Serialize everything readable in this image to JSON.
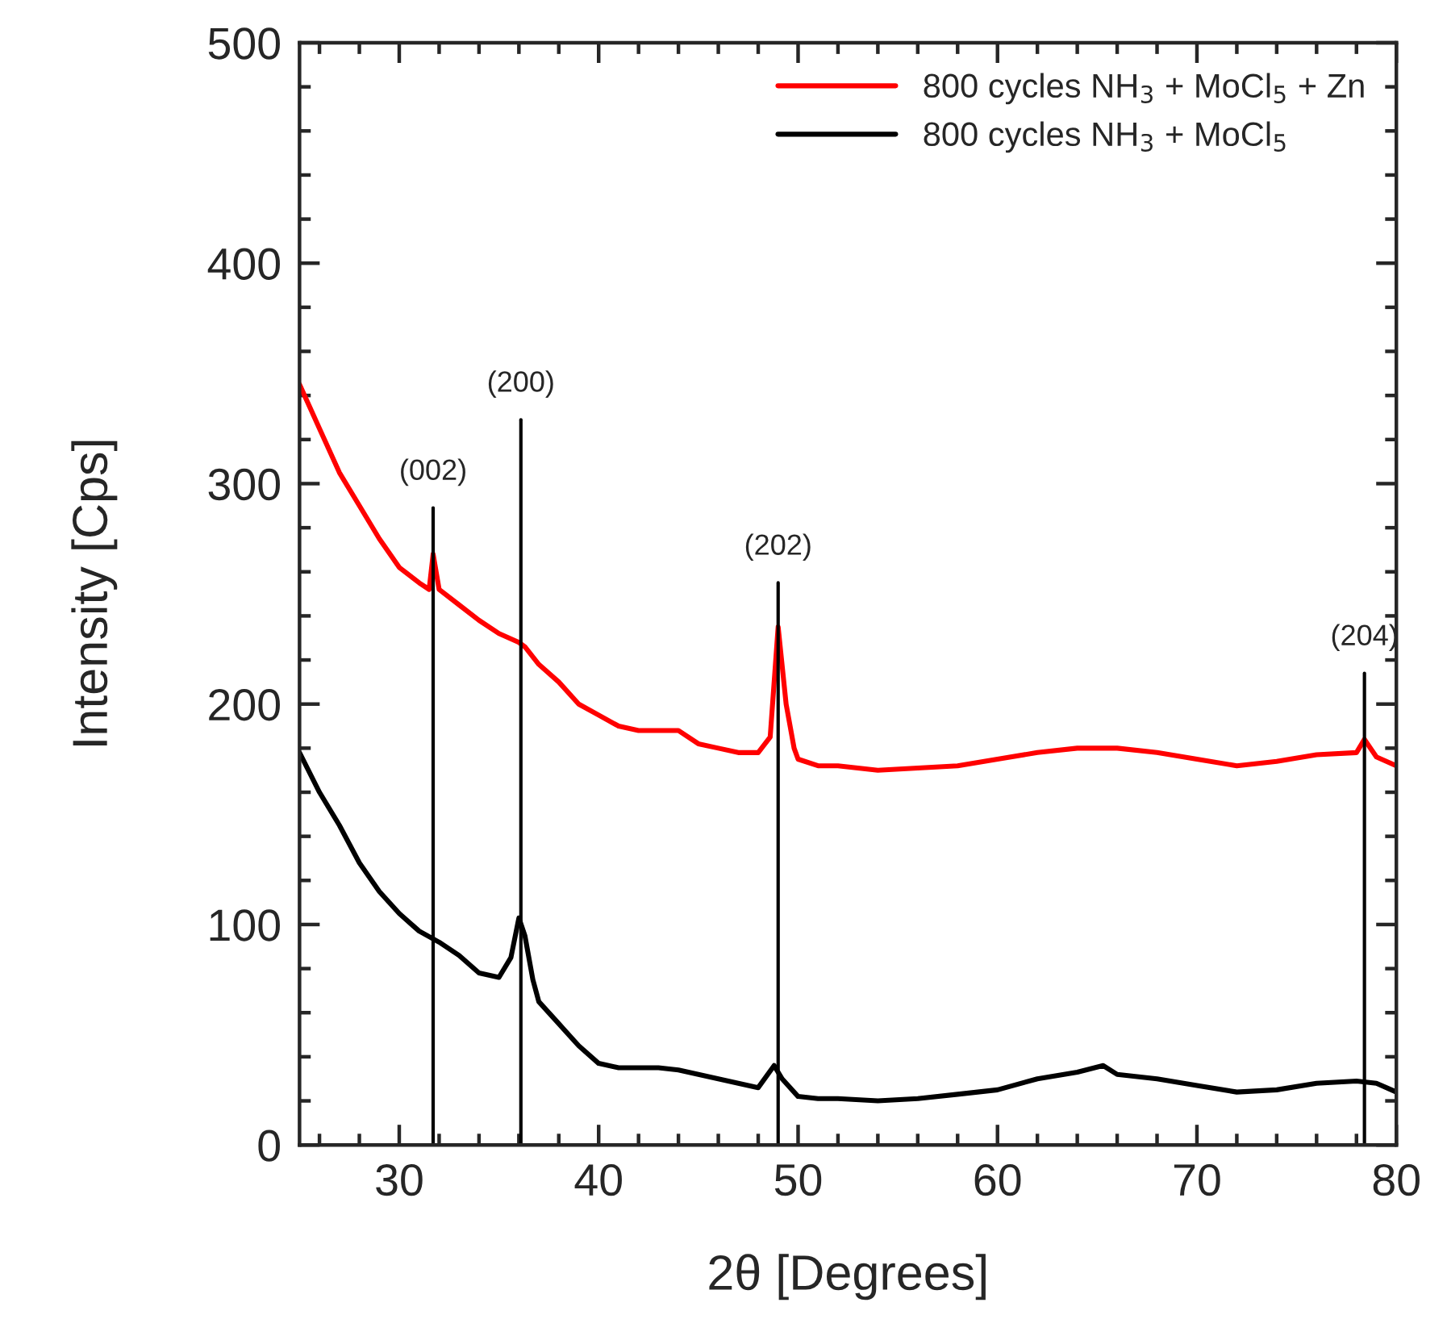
{
  "chart_data": {
    "type": "line",
    "xlabel": "2θ [Degrees]",
    "ylabel": "Intensity [Cps]",
    "xlim": [
      25,
      80
    ],
    "ylim": [
      0,
      500
    ],
    "xticks": [
      {
        "value": 26,
        "label": null
      },
      {
        "value": 28,
        "label": null
      },
      30,
      {
        "value": 32,
        "label": null
      },
      {
        "value": 34,
        "label": null
      },
      {
        "value": 36,
        "label": null
      },
      {
        "value": 38,
        "label": null
      },
      40,
      {
        "value": 42,
        "label": null
      },
      {
        "value": 44,
        "label": null
      },
      {
        "value": 46,
        "label": null
      },
      {
        "value": 48,
        "label": null
      },
      50,
      {
        "value": 52,
        "label": null
      },
      {
        "value": 54,
        "label": null
      },
      {
        "value": 56,
        "label": null
      },
      {
        "value": 58,
        "label": null
      },
      60,
      {
        "value": 62,
        "label": null
      },
      {
        "value": 64,
        "label": null
      },
      {
        "value": 66,
        "label": null
      },
      {
        "value": 68,
        "label": null
      },
      70,
      {
        "value": 72,
        "label": null
      },
      {
        "value": 74,
        "label": null
      },
      {
        "value": 76,
        "label": null
      },
      {
        "value": 78,
        "label": null
      },
      80
    ],
    "yticks": [
      0,
      {
        "value": 20,
        "label": null
      },
      {
        "value": 40,
        "label": null
      },
      {
        "value": 60,
        "label": null
      },
      {
        "value": 80,
        "label": null
      },
      100,
      {
        "value": 120,
        "label": null
      },
      {
        "value": 140,
        "label": null
      },
      {
        "value": 160,
        "label": null
      },
      {
        "value": 180,
        "label": null
      },
      200,
      {
        "value": 220,
        "label": null
      },
      {
        "value": 240,
        "label": null
      },
      {
        "value": 260,
        "label": null
      },
      {
        "value": 280,
        "label": null
      },
      300,
      {
        "value": 320,
        "label": null
      },
      {
        "value": 340,
        "label": null
      },
      {
        "value": 360,
        "label": null
      },
      {
        "value": 380,
        "label": null
      },
      400,
      {
        "value": 420,
        "label": null
      },
      {
        "value": 440,
        "label": null
      },
      {
        "value": 460,
        "label": null
      },
      {
        "value": 480,
        "label": null
      },
      500
    ],
    "grid": false,
    "legend": "top right",
    "line_style": "solid",
    "marker": "none",
    "series": [
      {
        "name": "800 cycles NH$_{3}$ + MoCl$_{5}$ + Zn",
        "color": "#ff0000",
        "x": [
          25,
          26,
          27,
          28,
          29,
          30,
          31,
          31.5,
          31.7,
          32,
          33,
          34,
          35,
          36,
          36.3,
          37,
          38,
          39,
          40,
          41,
          42,
          43,
          44,
          45,
          46,
          47,
          48,
          48.6,
          49,
          49.4,
          49.8,
          50,
          51,
          52,
          54,
          56,
          58,
          60,
          62,
          64,
          66,
          68,
          70,
          72,
          74,
          76,
          78,
          78.4,
          79,
          80
        ],
        "values": [
          345,
          325,
          305,
          290,
          275,
          262,
          255,
          252,
          268,
          252,
          245,
          238,
          232,
          228,
          226,
          218,
          210,
          200,
          195,
          190,
          188,
          188,
          188,
          182,
          180,
          178,
          178,
          185,
          235,
          200,
          180,
          175,
          172,
          172,
          170,
          171,
          172,
          175,
          178,
          180,
          180,
          178,
          175,
          172,
          174,
          177,
          178,
          184,
          176,
          172
        ]
      },
      {
        "name": "800 cycles NH$_{3}$ + MoCl$_{5}$",
        "color": "#000000",
        "x": [
          25,
          26,
          27,
          28,
          29,
          30,
          31,
          32,
          33,
          34,
          35,
          35.6,
          36,
          36.3,
          36.7,
          37,
          38,
          39,
          40,
          41,
          42,
          43,
          44,
          45,
          46,
          47,
          48,
          48.8,
          49.2,
          50,
          51,
          52,
          54,
          56,
          58,
          60,
          62,
          64,
          65.3,
          66,
          68,
          70,
          72,
          74,
          76,
          78,
          79,
          80
        ],
        "values": [
          178,
          160,
          145,
          128,
          115,
          105,
          97,
          92,
          86,
          78,
          76,
          85,
          103,
          95,
          75,
          65,
          55,
          45,
          37,
          35,
          35,
          35,
          34,
          32,
          30,
          28,
          26,
          36,
          30,
          22,
          21,
          21,
          20,
          21,
          23,
          25,
          30,
          33,
          36,
          32,
          30,
          27,
          24,
          25,
          28,
          29,
          28,
          24
        ]
      },
      {
        "name": "(002)",
        "type": "line",
        "color": "#000000",
        "x": [
          31.7,
          31.7
        ],
        "values": [
          0,
          289
        ]
      },
      {
        "name": "(200)",
        "type": "line",
        "color": "#000000",
        "x": [
          36.1,
          36.1
        ],
        "values": [
          0,
          329
        ]
      },
      {
        "name": "(202)",
        "type": "line",
        "color": "#000000",
        "x": [
          49.0,
          49.0
        ],
        "values": [
          0,
          255
        ]
      },
      {
        "name": "(204)",
        "type": "line",
        "color": "#000000",
        "x": [
          78.4,
          78.4
        ],
        "values": [
          0,
          214
        ]
      }
    ]
  }
}
